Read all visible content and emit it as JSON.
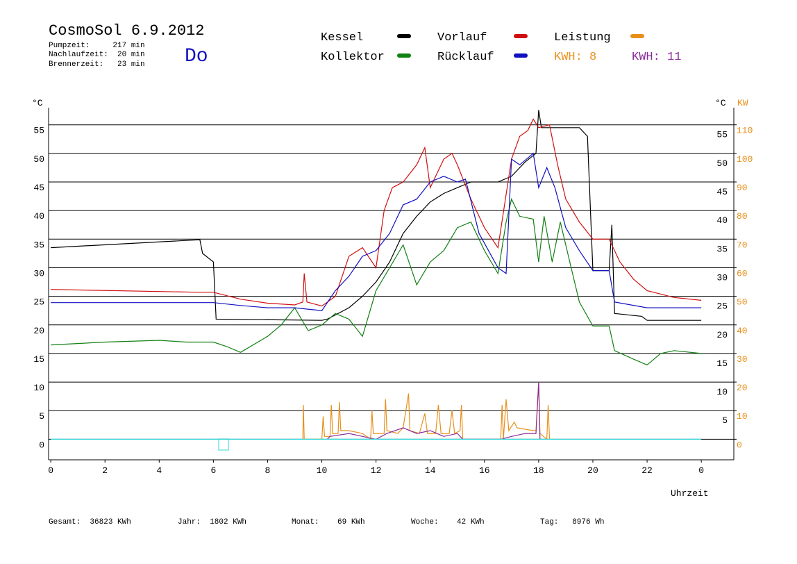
{
  "chart_data": {
    "type": "line",
    "title": "CosmoSol 6.9.2012",
    "info": [
      "Pumpzeit:     217 min",
      "Nachlaufzeit:  20 min",
      "Brennerzeit:   23 min"
    ],
    "weekday": "Do",
    "annotations": [
      {
        "text": "KWH: 8",
        "color": "#e8901c"
      },
      {
        "text": "KWH: 11",
        "color": "#8a2a9a"
      }
    ],
    "ylabel": "°C",
    "y2label": "°C",
    "y2unit": "KW",
    "xlabel": "Uhrzeit",
    "footer": [
      "Gesamt:  36823 KWh",
      "Jahr:  1802 KWh",
      "Monat:    69 KWh",
      "Woche:    42 KWh",
      "Tag:   8976 Wh"
    ],
    "xlim": [
      -0.08,
      25.2
    ],
    "xticks": [
      0,
      2,
      4,
      6,
      8,
      10,
      12,
      14,
      16,
      18,
      20,
      22,
      {
        "value": 24,
        "label": "0"
      }
    ],
    "ylim": [
      -3.6,
      58
    ],
    "yticks": [
      0,
      5,
      10,
      15,
      20,
      25,
      30,
      35,
      40,
      45,
      50,
      55
    ],
    "y2lim": [
      -7.2,
      116
    ],
    "y2ticks": [
      0,
      10,
      20,
      30,
      40,
      50,
      60,
      70,
      80,
      90,
      100,
      110
    ],
    "grid": true,
    "series": [
      {
        "name": "Kessel",
        "color": "#000000",
        "x": [
          0,
          5.5,
          5.6,
          6,
          6.1,
          10,
          10.2,
          11,
          11.5,
          12,
          12.5,
          13,
          13.5,
          14,
          14.5,
          15,
          15.5,
          16,
          16.5,
          17,
          17.5,
          17.9,
          18,
          18.1,
          19.5,
          19.8,
          20,
          20.6,
          20.7,
          20.8,
          21.8,
          22,
          24
        ],
        "values": [
          33.5,
          34.9,
          32.5,
          31,
          21,
          20.8,
          21,
          23,
          25,
          27.5,
          31,
          36,
          39,
          41.5,
          43,
          44,
          45,
          45,
          45,
          46,
          48.5,
          50,
          57.6,
          54.5,
          54.5,
          53,
          29.5,
          29.5,
          37.5,
          22,
          21.5,
          20.8,
          20.8
        ]
      },
      {
        "name": "Kollektor",
        "color": "#128012",
        "x": [
          0,
          2,
          4,
          5,
          6,
          6.5,
          7,
          8,
          8.5,
          9,
          9.5,
          10,
          10.5,
          11,
          11.5,
          12,
          12.5,
          13,
          13.5,
          14,
          14.5,
          15,
          15.5,
          16,
          16.5,
          16.8,
          17,
          17.3,
          17.8,
          18,
          18.2,
          18.5,
          18.8,
          19.2,
          19.5,
          20,
          20.6,
          20.8,
          21.5,
          22,
          22.5,
          23,
          24
        ],
        "values": [
          16.5,
          17,
          17.3,
          17,
          17,
          16.2,
          15.2,
          18,
          20,
          23,
          19,
          20,
          22,
          21,
          18,
          26,
          30,
          34,
          27,
          31,
          33,
          37,
          38,
          33,
          29,
          38,
          42,
          39,
          38.5,
          31,
          39,
          31,
          38,
          30,
          24,
          19.8,
          19.8,
          15.5,
          14,
          13,
          15,
          15.5,
          15
        ]
      },
      {
        "name": "Vorlauf",
        "color": "#d01010",
        "x": [
          0,
          5.5,
          6,
          7,
          8,
          9,
          9.3,
          9.35,
          9.45,
          10,
          10.5,
          11,
          11.5,
          12,
          12.3,
          12.6,
          13,
          13.5,
          13.8,
          14,
          14.5,
          14.8,
          15,
          15.5,
          16,
          16.5,
          17,
          17.3,
          17.6,
          17.8,
          18,
          18.4,
          18.7,
          19,
          19.5,
          20,
          20.6,
          21,
          21.5,
          22,
          23,
          24
        ],
        "values": [
          26.2,
          25.7,
          25.7,
          24.5,
          23.8,
          23.5,
          24,
          29,
          24,
          23.3,
          25,
          32,
          33.5,
          30,
          40,
          44,
          45,
          48,
          51,
          44,
          49,
          50,
          48,
          42,
          37,
          33.5,
          49,
          53,
          54,
          56,
          54.5,
          55,
          48,
          42,
          38,
          35,
          35,
          31,
          28,
          26,
          24.8,
          24.3
        ]
      },
      {
        "name": "Rücklauf",
        "color": "#1010c0",
        "x": [
          0,
          6,
          7,
          8,
          9,
          10,
          10.5,
          11,
          11.5,
          12,
          12.5,
          13,
          13.5,
          14,
          14.5,
          15,
          15.3,
          15.8,
          16.5,
          16.8,
          17,
          17.3,
          17.8,
          18,
          18.3,
          18.6,
          19,
          19.5,
          20,
          20.6,
          20.8,
          22,
          24
        ],
        "values": [
          23.9,
          23.9,
          23.4,
          23,
          23,
          22.5,
          26,
          28.5,
          32,
          33,
          36,
          41,
          42,
          45,
          46,
          45,
          45.5,
          36,
          30,
          29,
          49,
          48,
          50,
          44,
          47.5,
          44,
          37,
          33,
          29.5,
          29.5,
          24,
          23,
          23
        ]
      },
      {
        "name": "Leistung",
        "color": "#e8901c",
        "axis": "y2",
        "x": [
          9.3,
          9.32,
          9.35,
          10,
          10.05,
          10.1,
          10.3,
          10.35,
          10.4,
          10.6,
          10.65,
          10.7,
          11,
          11.5,
          11.8,
          11.85,
          11.9,
          12.3,
          12.35,
          12.4,
          12.8,
          13,
          13.2,
          13.25,
          13.6,
          13.8,
          13.9,
          14.2,
          14.3,
          14.4,
          14.7,
          14.8,
          14.9,
          15.1,
          15.15,
          15.2,
          16.6,
          16.65,
          16.7,
          16.8,
          16.9,
          17.1,
          17.2,
          17.8,
          17.9,
          18,
          18.05,
          18.3,
          18.35,
          18.4
        ],
        "values": [
          0,
          12,
          0,
          0,
          8,
          1,
          1,
          12,
          2,
          2,
          13,
          3,
          3,
          2,
          0,
          10,
          2,
          2,
          14,
          3,
          2,
          4,
          16,
          3,
          2,
          9,
          2,
          2,
          12,
          2,
          2,
          10,
          2,
          3,
          12,
          0,
          0,
          12,
          0,
          14,
          3,
          6,
          4,
          3,
          3,
          20,
          2,
          0,
          12,
          0
        ]
      },
      {
        "color": "#8a2a9a",
        "axis": "y2",
        "x": [
          10.2,
          10.3,
          11,
          11.5,
          12,
          12.4,
          13,
          13.5,
          14,
          14.5,
          15,
          15.2,
          16.6,
          17,
          17.5,
          17.9,
          18,
          18.05
        ],
        "values": [
          0,
          1,
          2,
          1,
          0,
          2,
          4,
          2,
          3,
          1,
          2,
          0,
          0,
          1,
          2,
          2,
          20,
          0
        ]
      },
      {
        "color": "#30d8d8",
        "x": [
          0,
          24
        ],
        "values": [
          0,
          0
        ]
      }
    ]
  }
}
